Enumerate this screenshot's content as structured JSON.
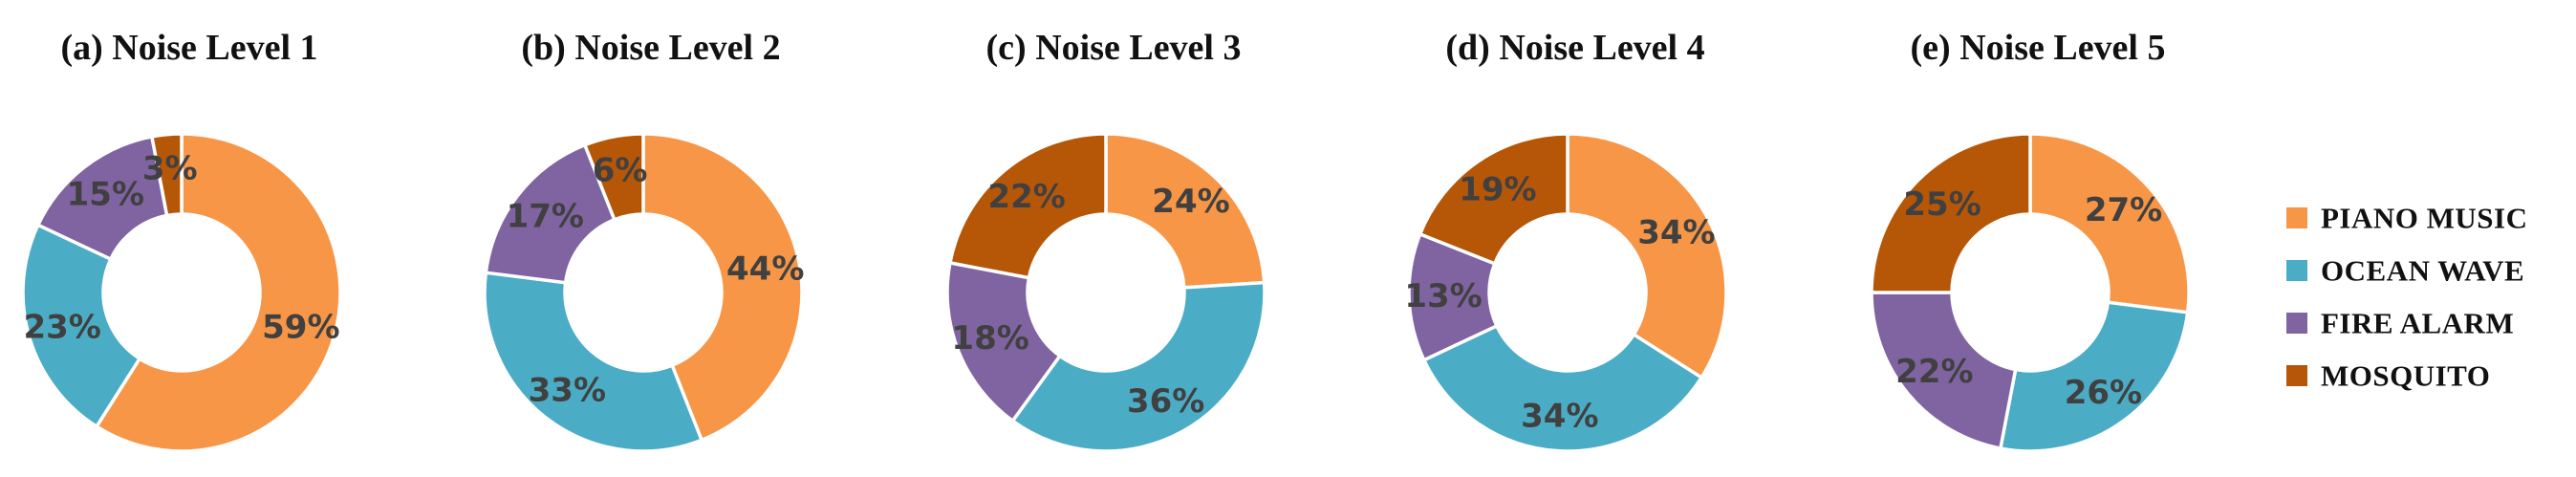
{
  "legend": [
    {
      "label": "PIANO MUSIC",
      "color": "#F79646"
    },
    {
      "label": "OCEAN WAVE",
      "color": "#4BACC6"
    },
    {
      "label": "FIRE ALARM",
      "color": "#8064A2"
    },
    {
      "label": "MOSQUITO",
      "color": "#B65708"
    }
  ],
  "chart_data": [
    {
      "type": "pie",
      "title": "(a) Noise Level 1",
      "categories": [
        "PIANO MUSIC",
        "OCEAN WAVE",
        "FIRE ALARM",
        "MOSQUITO"
      ],
      "values": [
        59,
        23,
        15,
        3
      ],
      "labels": [
        "59%",
        "23%",
        "15%",
        "3%"
      ]
    },
    {
      "type": "pie",
      "title": "(b) Noise Level 2",
      "categories": [
        "PIANO MUSIC",
        "OCEAN WAVE",
        "FIRE ALARM",
        "MOSQUITO"
      ],
      "values": [
        44,
        33,
        17,
        6
      ],
      "labels": [
        "44%",
        "33%",
        "17%",
        "6%"
      ]
    },
    {
      "type": "pie",
      "title": "(c) Noise Level 3",
      "categories": [
        "PIANO MUSIC",
        "OCEAN WAVE",
        "FIRE ALARM",
        "MOSQUITO"
      ],
      "values": [
        24,
        36,
        18,
        22
      ],
      "labels": [
        "24%",
        "36%",
        "18%",
        "22%"
      ]
    },
    {
      "type": "pie",
      "title": "(d) Noise Level 4",
      "categories": [
        "PIANO MUSIC",
        "OCEAN WAVE",
        "FIRE ALARM",
        "MOSQUITO"
      ],
      "values": [
        34,
        34,
        13,
        19
      ],
      "labels": [
        "34%",
        "34%",
        "13%",
        "19%"
      ]
    },
    {
      "type": "pie",
      "title": "(e) Noise Level 5",
      "categories": [
        "PIANO MUSIC",
        "OCEAN WAVE",
        "FIRE ALARM",
        "MOSQUITO"
      ],
      "values": [
        27,
        26,
        22,
        25
      ],
      "labels": [
        "27%",
        "26%",
        "22%",
        "25%"
      ]
    }
  ]
}
